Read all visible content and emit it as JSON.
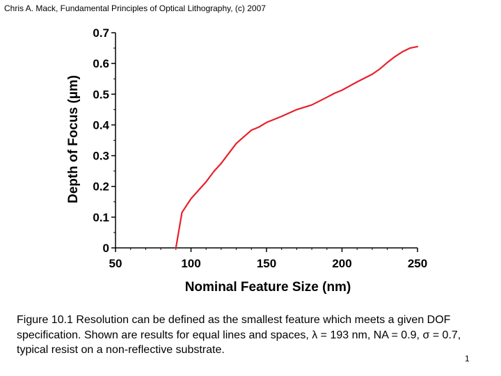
{
  "header": {
    "credit": "Chris A. Mack, Fundamental Principles of Optical Lithography, (c) 2007"
  },
  "caption": {
    "text": "Figure 10.1  Resolution can be defined as the smallest feature which meets a given DOF specification.  Shown are results for equal lines and spaces, λ = 193 nm, NA = 0.9, σ = 0.7, typical resist on a non-reflective substrate."
  },
  "slide_number": "1",
  "chart_data": {
    "type": "line",
    "xlabel": "Nominal Feature Size (nm)",
    "ylabel": "Depth of Focus (µm)",
    "xlim": [
      50,
      250
    ],
    "ylim": [
      0,
      0.7
    ],
    "x_ticks": [
      50,
      100,
      150,
      200,
      250
    ],
    "y_ticks": [
      0,
      0.1,
      0.2,
      0.3,
      0.4,
      0.5,
      0.6,
      0.7
    ],
    "x_tick_labels": [
      "50",
      "100",
      "150",
      "200",
      "250"
    ],
    "y_tick_labels": [
      "0",
      "0.1",
      "0.2",
      "0.3",
      "0.4",
      "0.5",
      "0.6",
      "0.7"
    ],
    "grid": false,
    "colors": {
      "series": "#e8202a"
    },
    "series": [
      {
        "x": [
          90,
          94,
          100,
          110,
          115,
          120,
          130,
          140,
          145,
          150,
          160,
          170,
          180,
          190,
          195,
          200,
          210,
          220,
          225,
          230,
          235,
          240,
          245,
          250
        ],
        "y": [
          0,
          0.115,
          0.16,
          0.215,
          0.248,
          0.275,
          0.34,
          0.383,
          0.393,
          0.408,
          0.428,
          0.45,
          0.465,
          0.49,
          0.503,
          0.513,
          0.54,
          0.565,
          0.582,
          0.603,
          0.622,
          0.638,
          0.65,
          0.655
        ]
      }
    ]
  }
}
